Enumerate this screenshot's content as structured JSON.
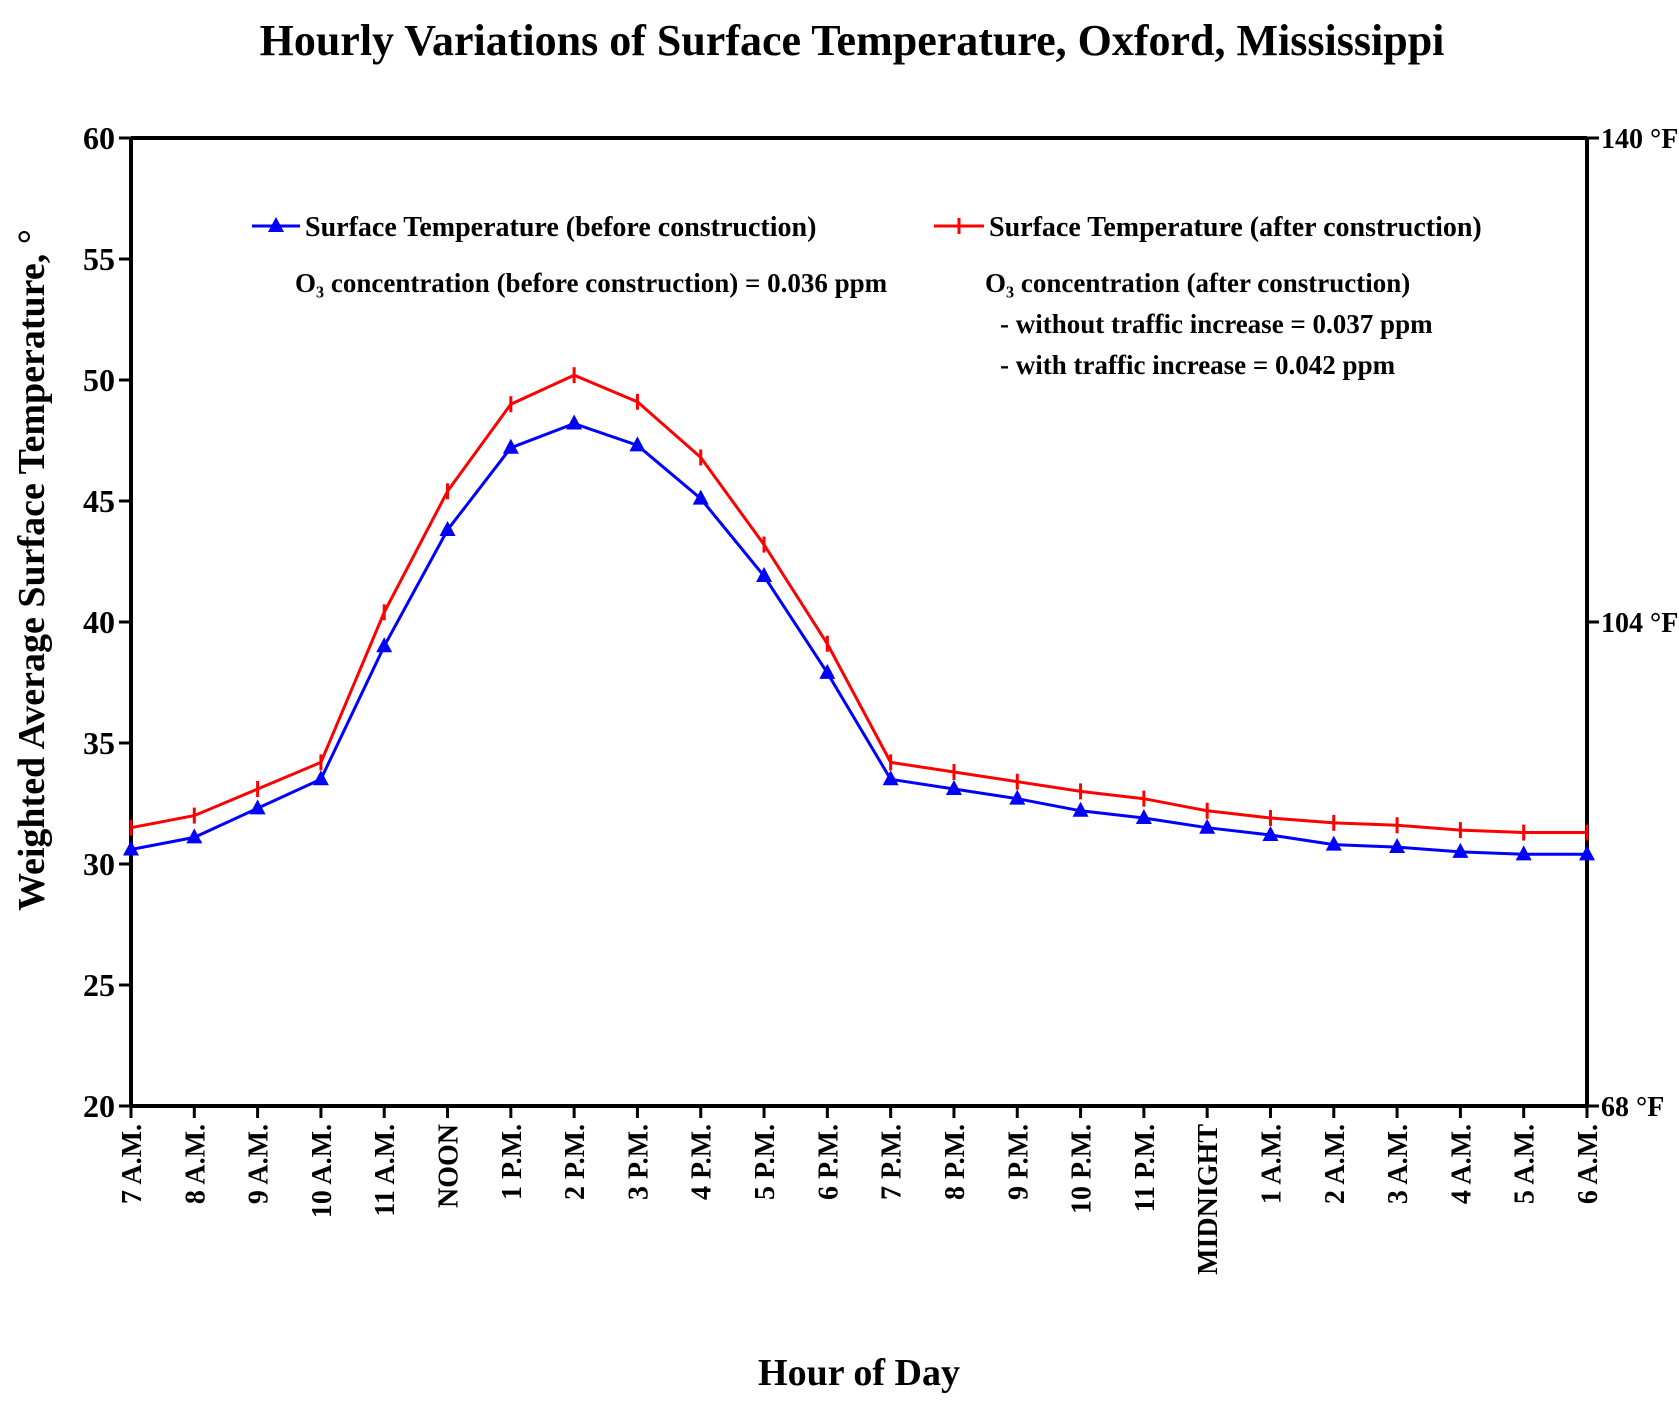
{
  "chart_data": {
    "type": "line",
    "title": "Hourly Variations of Surface Temperature, Oxford, Mississippi",
    "xlabel": "Hour of Day",
    "ylabel": "Weighted Average Surface Temperature, °",
    "ylim": [
      20,
      60
    ],
    "yticks": [
      "20",
      "25",
      "30",
      "35",
      "40",
      "45",
      "50",
      "55",
      "60"
    ],
    "right_axis_labels": [
      "68 °F",
      "104 °F",
      "140 °F"
    ],
    "categories": [
      "7 A.M.",
      "8 A.M.",
      "9 A.M.",
      "10 A.M.",
      "11 A.M.",
      "NOON",
      "1 P.M.",
      "2 P.M.",
      "3 P.M.",
      "4 P.M.",
      "5 P.M.",
      "6 P.M.",
      "7 P.M.",
      "8 P.M.",
      "9 P.M.",
      "10 P.M.",
      "11 P.M.",
      "MIDNIGHT",
      "1 A.M.",
      "2 A.M.",
      "3 A.M.",
      "4 A.M.",
      "5 A.M.",
      "6 A.M."
    ],
    "series": [
      {
        "name": "Surface Temperature (before construction)",
        "color": "#0000ff",
        "marker": "triangle",
        "values": [
          30.6,
          31.1,
          32.3,
          33.5,
          39.0,
          43.8,
          47.2,
          48.2,
          47.3,
          45.1,
          41.9,
          37.9,
          33.5,
          33.1,
          32.7,
          32.2,
          31.9,
          31.5,
          31.2,
          30.8,
          30.7,
          30.5,
          30.4,
          30.4
        ]
      },
      {
        "name": "Surface Temperature (after construction)",
        "color": "#ff0000",
        "marker": "plus",
        "values": [
          31.5,
          32.0,
          33.1,
          34.2,
          40.4,
          45.4,
          49.0,
          50.2,
          49.1,
          46.8,
          43.2,
          39.1,
          34.2,
          33.8,
          33.4,
          33.0,
          32.7,
          32.2,
          31.9,
          31.7,
          31.6,
          31.4,
          31.3,
          31.3
        ]
      }
    ],
    "annotations": {
      "before": "O₃ concentration (before construction) = 0.036 ppm",
      "after_heading": "O₃ concentration (after construction)",
      "after_line1": "- without traffic increase = 0.037 ppm",
      "after_line2": "- with traffic increase = 0.042 ppm"
    },
    "legend_position": "top-inside"
  }
}
